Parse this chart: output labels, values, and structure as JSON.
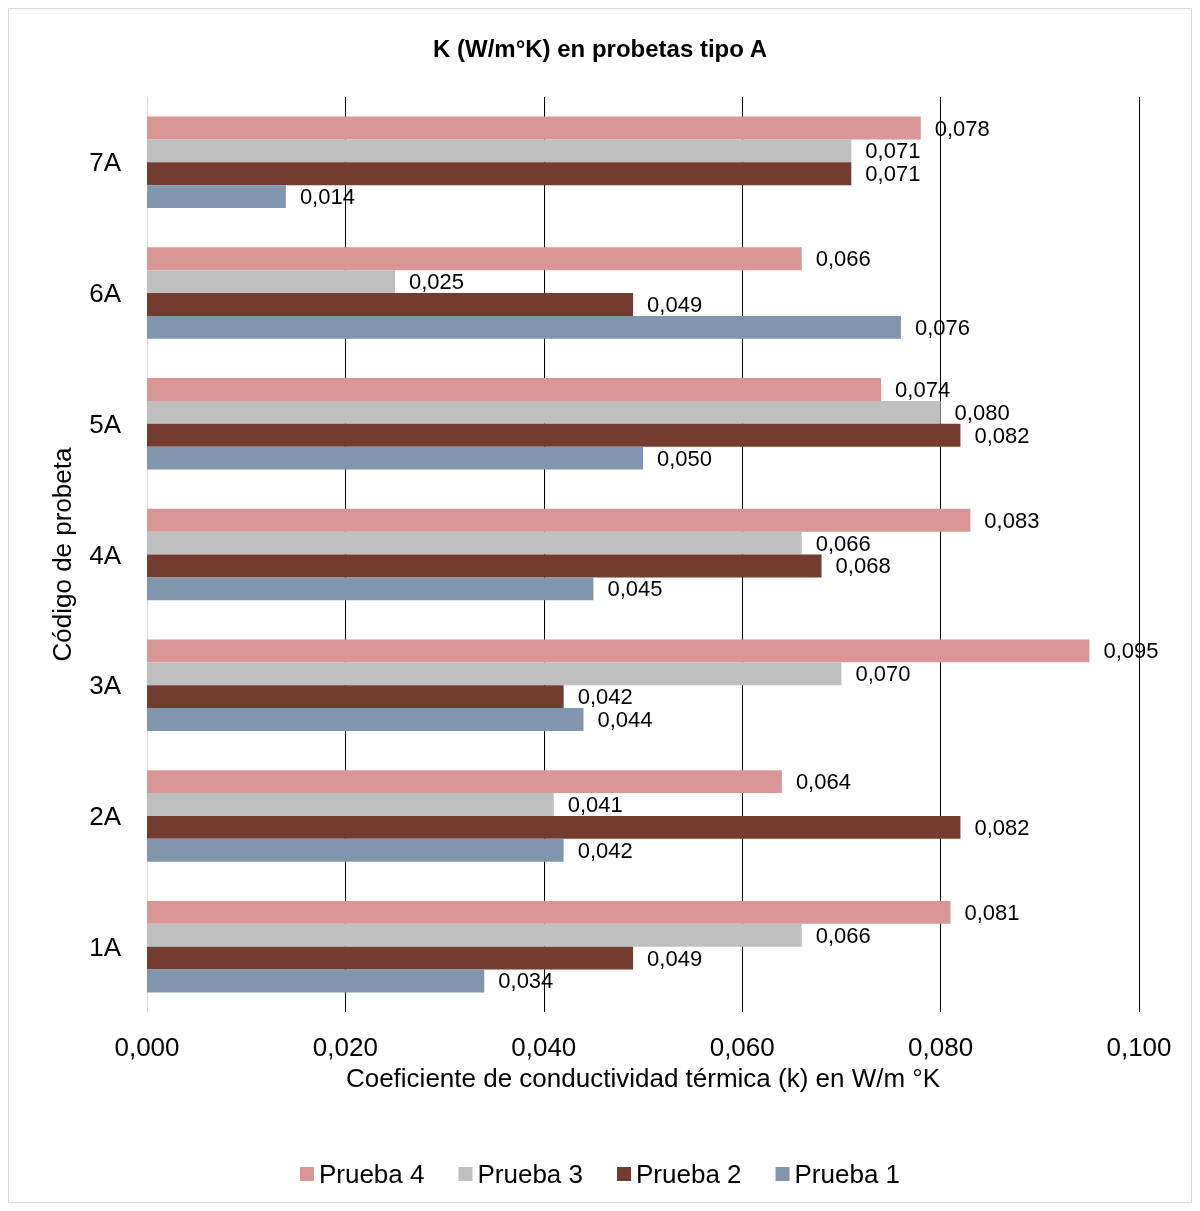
{
  "chart_data": {
    "type": "bar",
    "orientation": "horizontal",
    "title": "K (W/m°K) en probetas tipo A",
    "xlabel": "Coeficiente de conductividad térmica (k) en W/m °K",
    "ylabel": "Código de probeta",
    "categories": [
      "7A",
      "6A",
      "5A",
      "4A",
      "3A",
      "2A",
      "1A"
    ],
    "series": [
      {
        "name": "Prueba 4",
        "color": "#da9694",
        "values": [
          0.078,
          0.066,
          0.074,
          0.083,
          0.095,
          0.064,
          0.081
        ],
        "value_labels": [
          "0,078",
          "0,066",
          "0,074",
          "0,083",
          "0,095",
          "0,064",
          "0,081"
        ]
      },
      {
        "name": "Prueba 3",
        "color": "#bfbfbf",
        "values": [
          0.071,
          0.025,
          0.08,
          0.066,
          0.07,
          0.041,
          0.066
        ],
        "value_labels": [
          "0,071",
          "0,025",
          "0,080",
          "0,066",
          "0,070",
          "0,041",
          "0,066"
        ]
      },
      {
        "name": "Prueba 2",
        "color": "#733c2e",
        "values": [
          0.071,
          0.049,
          0.082,
          0.068,
          0.042,
          0.082,
          0.049
        ],
        "value_labels": [
          "0,071",
          "0,049",
          "0,082",
          "0,068",
          "0,042",
          "0,082",
          "0,049"
        ]
      },
      {
        "name": "Prueba 1",
        "color": "#8096ae",
        "values": [
          0.014,
          0.076,
          0.05,
          0.045,
          0.044,
          0.042,
          0.034
        ],
        "value_labels": [
          "0,014",
          "0,076",
          "0,050",
          "0,045",
          "0,044",
          "0,042",
          "0,034"
        ]
      }
    ],
    "xlim": [
      0,
      0.1
    ],
    "xticks": [
      {
        "value": 0,
        "label": "0,000"
      },
      {
        "value": 0.02,
        "label": "0,020"
      },
      {
        "value": 0.04,
        "label": "0,040"
      },
      {
        "value": 0.06,
        "label": "0,060"
      },
      {
        "value": 0.08,
        "label": "0,080"
      },
      {
        "value": 0.1,
        "label": "0,100"
      }
    ],
    "grid": "x",
    "legend": "bottom"
  }
}
